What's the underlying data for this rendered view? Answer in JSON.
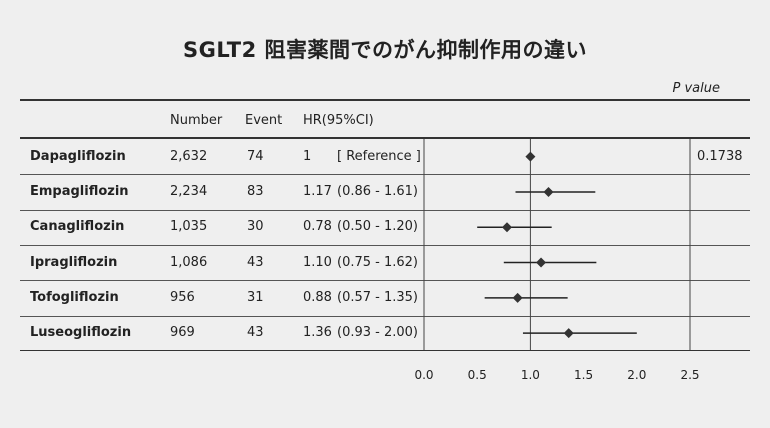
{
  "title": "SGLT2 阻害薬間でのがん抑制作用の違い",
  "pvalue_label": "P value",
  "headers": {
    "number": "Number",
    "event": "Event",
    "hr": "HR(95%CI)"
  },
  "colors": {
    "marker": "#333333",
    "line": "#222222",
    "background": "#efefef"
  },
  "chart_data": {
    "type": "forest",
    "reference_line": 1.0,
    "xlim": [
      0.0,
      2.5
    ],
    "xticks": [
      "0.0",
      "0.5",
      "1.0",
      "1.5",
      "2.0",
      "2.5"
    ],
    "rows": [
      {
        "drug": "Dapagliflozin",
        "number": "2,632",
        "event": "74",
        "hr_text": "1",
        "ci_text": "[ Reference ]",
        "hr": 1.0,
        "lo": null,
        "hi": null,
        "p_value": "0.1738"
      },
      {
        "drug": "Empagliflozin",
        "number": "2,234",
        "event": "83",
        "hr_text": "1.17",
        "ci_text": "(0.86 - 1.61)",
        "hr": 1.17,
        "lo": 0.86,
        "hi": 1.61,
        "p_value": ""
      },
      {
        "drug": "Canagliflozin",
        "number": "1,035",
        "event": "30",
        "hr_text": "0.78",
        "ci_text": "(0.50 - 1.20)",
        "hr": 0.78,
        "lo": 0.5,
        "hi": 1.2,
        "p_value": ""
      },
      {
        "drug": "Ipragliflozin",
        "number": "1,086",
        "event": "43",
        "hr_text": "1.10",
        "ci_text": "(0.75 - 1.62)",
        "hr": 1.1,
        "lo": 0.75,
        "hi": 1.62,
        "p_value": ""
      },
      {
        "drug": "Tofogliflozin",
        "number": "956",
        "event": "31",
        "hr_text": "0.88",
        "ci_text": "(0.57 - 1.35)",
        "hr": 0.88,
        "lo": 0.57,
        "hi": 1.35,
        "p_value": ""
      },
      {
        "drug": "Luseogliflozin",
        "number": "969",
        "event": "43",
        "hr_text": "1.36",
        "ci_text": "(0.93 - 2.00)",
        "hr": 1.36,
        "lo": 0.93,
        "hi": 2.0,
        "p_value": ""
      }
    ]
  }
}
